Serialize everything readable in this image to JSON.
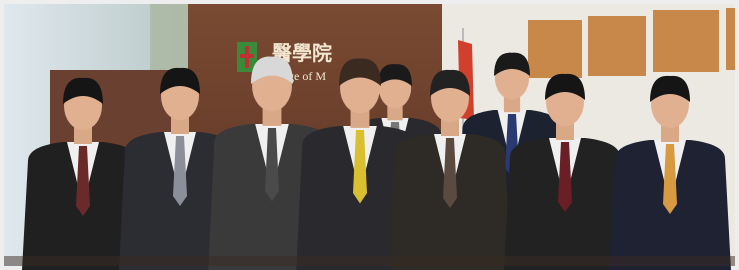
{
  "sign": {
    "chinese": "醫學院",
    "english": "College of M"
  }
}
